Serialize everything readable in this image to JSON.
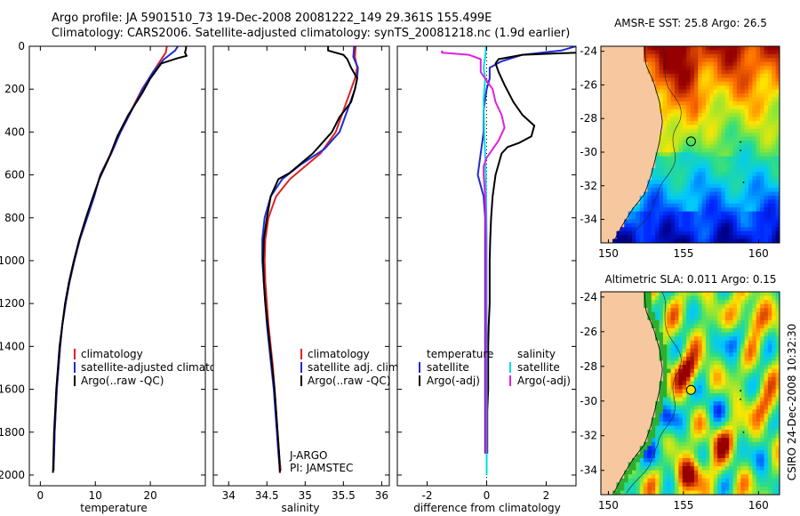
{
  "header": {
    "line1": "Argo profile: JA 5901510_73 19-Dec-2008 20081222_149 29.361S 155.499E",
    "line2": "Climatology: CARS2006. Satellite-adjusted climatology: synTS_20081218.nc (1.9d earlier)"
  },
  "side_text": "CSIRO 24-Dec-2008 10:32:30",
  "chart_data": [
    {
      "id": "temp",
      "type": "line",
      "xlabel": "temperature",
      "ylabel": "",
      "xlim": [
        -2,
        30
      ],
      "ylim": [
        2050,
        0
      ],
      "xticks": [
        0,
        10,
        20
      ],
      "yticks": [
        0,
        200,
        400,
        600,
        800,
        1000,
        1200,
        1400,
        1600,
        1800,
        2000
      ],
      "legend": {
        "position": "lower-center",
        "entries": [
          "climatology",
          "satellite-adjusted climatology",
          "Argo(..raw -QC)"
        ]
      },
      "series": [
        {
          "name": "climatology",
          "color": "#dd2222",
          "points": [
            [
              23.0,
              0
            ],
            [
              22.8,
              30
            ],
            [
              22.0,
              60
            ],
            [
              20.5,
              120
            ],
            [
              18.5,
              200
            ],
            [
              16.5,
              300
            ],
            [
              14.5,
              400
            ],
            [
              12.8,
              500
            ],
            [
              10.9,
              600
            ],
            [
              9.8,
              700
            ],
            [
              8.5,
              800
            ],
            [
              7.2,
              900
            ],
            [
              6.2,
              1000
            ],
            [
              5.3,
              1100
            ],
            [
              4.6,
              1200
            ],
            [
              4.0,
              1300
            ],
            [
              3.6,
              1400
            ],
            [
              3.3,
              1500
            ],
            [
              3.0,
              1600
            ],
            [
              2.8,
              1700
            ],
            [
              2.6,
              1800
            ],
            [
              2.5,
              1900
            ],
            [
              2.4,
              1980
            ]
          ]
        },
        {
          "name": "satellite-adjusted climatology",
          "color": "#1f2bd1",
          "points": [
            [
              25.0,
              0
            ],
            [
              24.5,
              20
            ],
            [
              22.5,
              60
            ],
            [
              20.5,
              120
            ],
            [
              18.6,
              200
            ],
            [
              16.6,
              300
            ],
            [
              14.6,
              400
            ],
            [
              12.9,
              500
            ],
            [
              10.9,
              600
            ],
            [
              9.8,
              700
            ],
            [
              8.5,
              800
            ],
            [
              7.2,
              900
            ],
            [
              6.2,
              1000
            ],
            [
              5.3,
              1100
            ],
            [
              4.6,
              1200
            ],
            [
              4.0,
              1300
            ],
            [
              3.6,
              1400
            ],
            [
              3.3,
              1500
            ],
            [
              3.0,
              1600
            ],
            [
              2.8,
              1700
            ],
            [
              2.6,
              1800
            ],
            [
              2.5,
              1900
            ],
            [
              2.4,
              1980
            ]
          ]
        },
        {
          "name": "Argo(..raw -QC)",
          "color": "#000000",
          "points": [
            [
              26.5,
              0
            ],
            [
              26.5,
              10
            ],
            [
              26.3,
              30
            ],
            [
              26.6,
              45
            ],
            [
              25.0,
              55
            ],
            [
              22.0,
              80
            ],
            [
              20.0,
              150
            ],
            [
              18.5,
              220
            ],
            [
              16.0,
              320
            ],
            [
              14.0,
              420
            ],
            [
              12.5,
              520
            ],
            [
              10.7,
              620
            ],
            [
              9.6,
              700
            ],
            [
              8.3,
              800
            ],
            [
              7.1,
              900
            ],
            [
              6.1,
              1000
            ],
            [
              5.2,
              1100
            ],
            [
              4.5,
              1200
            ],
            [
              4.0,
              1300
            ],
            [
              3.5,
              1400
            ],
            [
              3.2,
              1500
            ],
            [
              2.9,
              1600
            ],
            [
              2.7,
              1700
            ],
            [
              2.5,
              1800
            ],
            [
              2.4,
              1900
            ],
            [
              2.3,
              1990
            ]
          ]
        }
      ]
    },
    {
      "id": "sal",
      "type": "line",
      "xlabel": "salinity",
      "xlim": [
        33.8,
        36.1
      ],
      "ylim": [
        2050,
        0
      ],
      "xticks": [
        34,
        34.5,
        35,
        35.5,
        36
      ],
      "legend": {
        "position": "lower-center",
        "entries": [
          "climatology",
          "satellite adj. clim.",
          "Argo(..raw -QC)"
        ]
      },
      "annotations": [
        "J-ARGO",
        "PI: JAMSTEC"
      ],
      "series": [
        {
          "name": "climatology",
          "color": "#dd2222",
          "points": [
            [
              35.66,
              0
            ],
            [
              35.65,
              50
            ],
            [
              35.68,
              100
            ],
            [
              35.65,
              150
            ],
            [
              35.6,
              200
            ],
            [
              35.5,
              300
            ],
            [
              35.4,
              400
            ],
            [
              35.2,
              500
            ],
            [
              35.0,
              560
            ],
            [
              34.8,
              620
            ],
            [
              34.62,
              700
            ],
            [
              34.52,
              800
            ],
            [
              34.48,
              900
            ],
            [
              34.47,
              1000
            ],
            [
              34.48,
              1100
            ],
            [
              34.5,
              1200
            ],
            [
              34.52,
              1300
            ],
            [
              34.55,
              1400
            ],
            [
              34.58,
              1500
            ],
            [
              34.6,
              1600
            ],
            [
              34.62,
              1700
            ],
            [
              34.64,
              1800
            ],
            [
              34.66,
              1900
            ],
            [
              34.68,
              1980
            ]
          ]
        },
        {
          "name": "satellite adj. clim.",
          "color": "#1f2bd1",
          "points": [
            [
              35.64,
              0
            ],
            [
              35.63,
              50
            ],
            [
              35.69,
              100
            ],
            [
              35.68,
              150
            ],
            [
              35.65,
              200
            ],
            [
              35.55,
              300
            ],
            [
              35.45,
              400
            ],
            [
              35.25,
              480
            ],
            [
              34.95,
              550
            ],
            [
              34.7,
              620
            ],
            [
              34.55,
              700
            ],
            [
              34.47,
              800
            ],
            [
              34.44,
              900
            ],
            [
              34.44,
              1000
            ],
            [
              34.46,
              1100
            ],
            [
              34.48,
              1200
            ],
            [
              34.5,
              1300
            ],
            [
              34.53,
              1400
            ],
            [
              34.56,
              1500
            ],
            [
              34.59,
              1600
            ],
            [
              34.61,
              1700
            ],
            [
              34.63,
              1800
            ],
            [
              34.65,
              1900
            ],
            [
              34.67,
              1980
            ]
          ]
        },
        {
          "name": "Argo(..raw -QC)",
          "color": "#000000",
          "points": [
            [
              35.3,
              0
            ],
            [
              35.3,
              20
            ],
            [
              35.5,
              40
            ],
            [
              35.55,
              60
            ],
            [
              35.6,
              100
            ],
            [
              35.68,
              150
            ],
            [
              35.65,
              200
            ],
            [
              35.6,
              260
            ],
            [
              35.45,
              330
            ],
            [
              35.35,
              400
            ],
            [
              35.1,
              500
            ],
            [
              34.8,
              590
            ],
            [
              34.65,
              620
            ],
            [
              34.55,
              700
            ],
            [
              34.5,
              800
            ],
            [
              34.46,
              900
            ],
            [
              34.45,
              1000
            ],
            [
              34.46,
              1100
            ],
            [
              34.48,
              1200
            ],
            [
              34.51,
              1300
            ],
            [
              34.54,
              1400
            ],
            [
              34.57,
              1500
            ],
            [
              34.6,
              1600
            ],
            [
              34.62,
              1700
            ],
            [
              34.64,
              1800
            ],
            [
              34.66,
              1900
            ],
            [
              34.67,
              1990
            ]
          ]
        }
      ]
    },
    {
      "id": "diff",
      "type": "line",
      "xlabel": "difference from climatology",
      "xlim": [
        -3,
        3
      ],
      "ylim": [
        2050,
        0
      ],
      "xticks": [
        -2,
        0,
        2
      ],
      "legend": {
        "position": "lower-center",
        "entries": [
          "temperature",
          "satellite",
          "Argo(-adj)",
          "salinity",
          "satellite",
          "Argo(-adj)"
        ]
      },
      "series": [
        {
          "name": "temperature satellite",
          "color": "#1f2bd1",
          "points": [
            [
              3.0,
              0
            ],
            [
              2.5,
              20
            ],
            [
              1.2,
              40
            ],
            [
              0.5,
              70
            ],
            [
              0.1,
              100
            ],
            [
              0.1,
              150
            ],
            [
              0.0,
              200
            ],
            [
              -0.1,
              300
            ],
            [
              -0.1,
              400
            ],
            [
              -0.2,
              500
            ],
            [
              -0.3,
              600
            ],
            [
              -0.1,
              700
            ],
            [
              -0.05,
              800
            ],
            [
              -0.05,
              1000
            ],
            [
              -0.05,
              1200
            ],
            [
              -0.05,
              1400
            ],
            [
              -0.05,
              1600
            ],
            [
              -0.05,
              1800
            ],
            [
              -0.05,
              1900
            ]
          ]
        },
        {
          "name": "temperature Argo(-adj)",
          "color": "#000000",
          "points": [
            [
              3.0,
              30
            ],
            [
              1.2,
              40
            ],
            [
              0.4,
              60
            ],
            [
              0.3,
              80
            ],
            [
              0.4,
              120
            ],
            [
              0.6,
              180
            ],
            [
              0.9,
              260
            ],
            [
              1.2,
              320
            ],
            [
              1.6,
              370
            ],
            [
              1.5,
              420
            ],
            [
              1.1,
              450
            ],
            [
              0.7,
              470
            ],
            [
              0.5,
              500
            ],
            [
              0.3,
              600
            ],
            [
              0.2,
              700
            ],
            [
              0.15,
              800
            ],
            [
              0.12,
              900
            ],
            [
              0.1,
              1000
            ],
            [
              0.1,
              1100
            ],
            [
              0.1,
              1200
            ],
            [
              0.07,
              1300
            ],
            [
              0.05,
              1400
            ],
            [
              0.05,
              1500
            ],
            [
              0.05,
              1600
            ],
            [
              0.02,
              1700
            ],
            [
              0.02,
              1800
            ],
            [
              0.02,
              1900
            ]
          ]
        },
        {
          "name": "salinity satellite",
          "color": "#00dddd",
          "points": [
            [
              -0.02,
              0
            ],
            [
              -0.05,
              50
            ],
            [
              -0.1,
              100
            ],
            [
              -0.05,
              150
            ],
            [
              -0.1,
              250
            ],
            [
              -0.08,
              400
            ],
            [
              -0.05,
              500
            ],
            [
              -0.03,
              600
            ],
            [
              -0.02,
              700
            ],
            [
              -0.01,
              800
            ],
            [
              0.0,
              900
            ],
            [
              0.0,
              1000
            ],
            [
              0.0,
              1200
            ],
            [
              0.0,
              1400
            ],
            [
              0.0,
              1600
            ],
            [
              0.0,
              1800
            ],
            [
              0.0,
              2000
            ]
          ]
        },
        {
          "name": "salinity Argo(-adj)",
          "color": "#e020e0",
          "points": [
            [
              -1.5,
              20
            ],
            [
              -1.5,
              30
            ],
            [
              -0.6,
              40
            ],
            [
              -0.2,
              60
            ],
            [
              -0.2,
              120
            ],
            [
              0.0,
              160
            ],
            [
              0.2,
              200
            ],
            [
              0.3,
              260
            ],
            [
              0.5,
              320
            ],
            [
              0.6,
              380
            ],
            [
              0.4,
              440
            ],
            [
              0.2,
              480
            ],
            [
              0.0,
              520
            ],
            [
              -0.1,
              560
            ],
            [
              -0.1,
              600
            ],
            [
              -0.05,
              700
            ],
            [
              -0.03,
              800
            ],
            [
              -0.02,
              900
            ],
            [
              -0.02,
              1000
            ],
            [
              -0.02,
              1200
            ],
            [
              -0.02,
              1400
            ],
            [
              -0.02,
              1600
            ],
            [
              -0.02,
              1800
            ],
            [
              -0.02,
              1900
            ]
          ]
        }
      ]
    },
    {
      "id": "sst",
      "type": "heatmap",
      "title": "AMSR-E SST: 25.8 Argo: 26.5",
      "xlim": [
        149.5,
        161.4
      ],
      "ylim": [
        -35.4,
        -23.7
      ],
      "xticks": [
        150,
        155,
        160
      ],
      "yticks": [
        -24,
        -26,
        -28,
        -30,
        -32,
        -34
      ],
      "argo_marker": {
        "lon": 155.5,
        "lat": -29.36
      }
    },
    {
      "id": "sla",
      "type": "heatmap",
      "title": "Altimetric SLA: 0.011 Argo: 0.15",
      "xlim": [
        149.5,
        161.4
      ],
      "ylim": [
        -35.4,
        -23.7
      ],
      "xticks": [
        150,
        155,
        160
      ],
      "yticks": [
        -24,
        -26,
        -28,
        -30,
        -32,
        -34
      ],
      "argo_marker": {
        "lon": 155.5,
        "lat": -29.36
      }
    }
  ]
}
